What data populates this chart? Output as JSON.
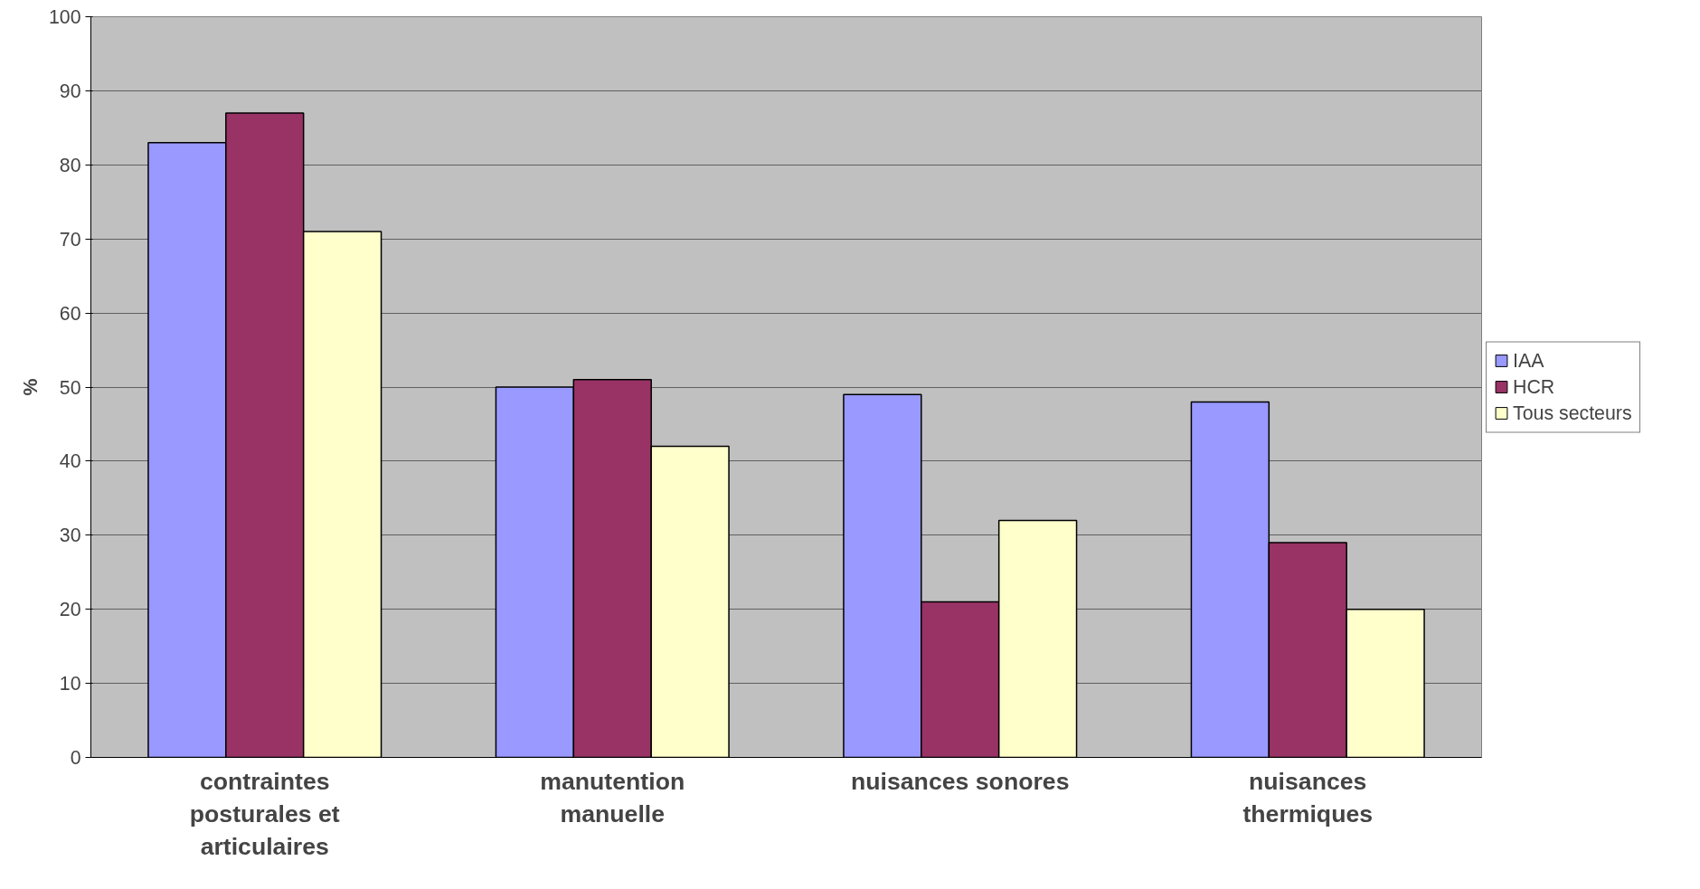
{
  "chart_data": {
    "type": "bar",
    "ylabel": "%",
    "categories": [
      "contraintes posturales et articulaires",
      "manutention manuelle",
      "nuisances sonores",
      "nuisances thermiques"
    ],
    "series": [
      {
        "name": "IAA",
        "color": "#9999ff",
        "values": [
          83,
          50,
          49,
          48
        ]
      },
      {
        "name": "HCR",
        "color": "#993366",
        "values": [
          87,
          51,
          21,
          29
        ]
      },
      {
        "name": "Tous secteurs",
        "color": "#ffffcc",
        "values": [
          71,
          42,
          32,
          20
        ]
      }
    ],
    "ylim": [
      0,
      100
    ],
    "yticks": [
      0,
      10,
      20,
      30,
      40,
      50,
      60,
      70,
      80,
      90,
      100
    ],
    "grid": "y",
    "legend": "right"
  }
}
